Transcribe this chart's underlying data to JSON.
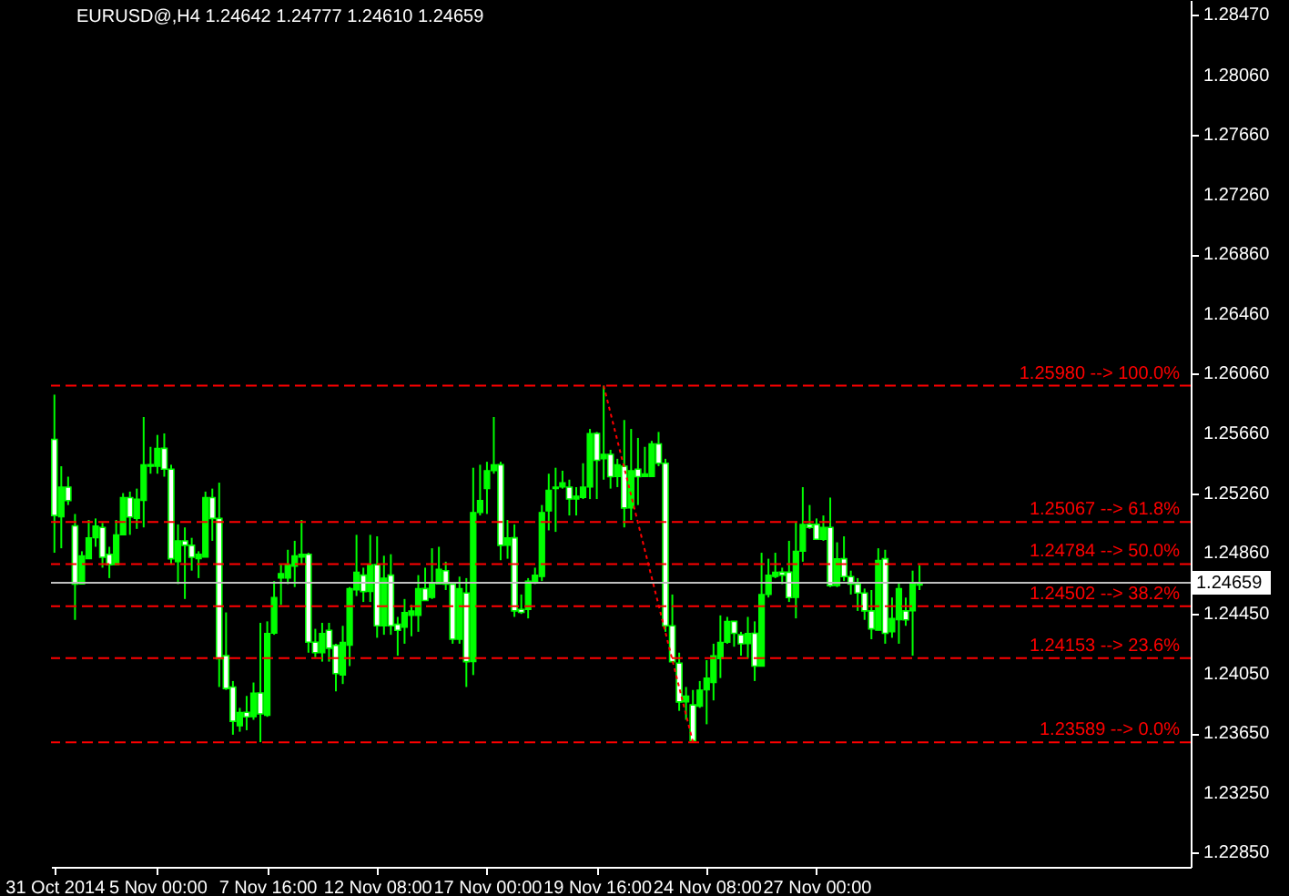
{
  "chart_data": {
    "type": "candlestick",
    "title": "EURUSD@,H4  1.24642 1.24777 1.24610 1.24659",
    "categories": [
      "31 Oct 2014",
      null,
      null,
      null,
      null,
      null,
      null,
      null,
      null,
      null,
      null,
      null,
      null,
      null,
      null,
      "5 Nov 00:00",
      null,
      null,
      null,
      null,
      null,
      null,
      null,
      null,
      null,
      null,
      null,
      null,
      null,
      null,
      null,
      "7 Nov 16:00",
      null,
      null,
      null,
      null,
      null,
      null,
      null,
      null,
      null,
      null,
      null,
      null,
      null,
      null,
      null,
      "12 Nov 08:00",
      null,
      null,
      null,
      null,
      null,
      null,
      null,
      null,
      null,
      null,
      null,
      null,
      null,
      null,
      null,
      "17 Nov 00:00",
      null,
      null,
      null,
      null,
      null,
      null,
      null,
      null,
      null,
      null,
      null,
      null,
      null,
      null,
      null,
      "19 Nov 16:00",
      null,
      null,
      null,
      null,
      null,
      null,
      null,
      null,
      null,
      null,
      null,
      null,
      null,
      null,
      null,
      "24 Nov 08:00",
      null,
      null,
      null,
      null,
      null,
      null,
      null,
      null,
      null,
      null,
      null,
      null,
      null,
      null,
      null,
      "27 Nov 00:00",
      null,
      null,
      null,
      null,
      null,
      null,
      null,
      null,
      null,
      null,
      null,
      null,
      null,
      null,
      null,
      null,
      null,
      null,
      null,
      null,
      null,
      null,
      null,
      null,
      null,
      null,
      null,
      null,
      null,
      null,
      null,
      null,
      null,
      null,
      null,
      null,
      null,
      null,
      null,
      null,
      null,
      null,
      null,
      null,
      null,
      null,
      null,
      null,
      null,
      null,
      null,
      null,
      null,
      null
    ],
    "series": [
      {
        "type": "candlestick",
        "color": "#00ff00",
        "ohlc": [
          [
            1.2562,
            1.2592,
            1.2486,
            1.2511
          ],
          [
            1.251,
            1.2544,
            1.2489,
            1.253
          ],
          [
            1.253,
            1.2537,
            1.2518,
            1.2521
          ],
          [
            1.2504,
            1.2512,
            1.2441,
            1.2465
          ],
          [
            1.2465,
            1.2487,
            1.2465,
            1.2484
          ],
          [
            1.2482,
            1.2508,
            1.2482,
            1.2496
          ],
          [
            1.2496,
            1.2509,
            1.249,
            1.2504
          ],
          [
            1.2503,
            1.2506,
            1.2476,
            1.2483
          ],
          [
            1.2485,
            1.249,
            1.2469,
            1.2478
          ],
          [
            1.2478,
            1.2508,
            1.2478,
            1.2498
          ],
          [
            1.2498,
            1.2526,
            1.2498,
            1.2523
          ],
          [
            1.2523,
            1.2527,
            1.2498,
            1.251
          ],
          [
            1.2509,
            1.2529,
            1.2502,
            1.2522
          ],
          [
            1.2521,
            1.2577,
            1.2503,
            1.2545
          ],
          [
            1.2545,
            1.2557,
            1.2539,
            1.2544
          ],
          [
            1.2544,
            1.2565,
            1.2539,
            1.2556
          ],
          [
            1.2556,
            1.2566,
            1.2537,
            1.2542
          ],
          [
            1.2542,
            1.2545,
            1.2478,
            1.2482
          ],
          [
            1.248,
            1.2505,
            1.2465,
            1.2494
          ],
          [
            1.2494,
            1.2503,
            1.2455,
            1.2491
          ],
          [
            1.2491,
            1.2496,
            1.2474,
            1.2483
          ],
          [
            1.2482,
            1.2487,
            1.2469,
            1.2485
          ],
          [
            1.2483,
            1.2527,
            1.2483,
            1.2523
          ],
          [
            1.2523,
            1.2529,
            1.2494,
            1.2509
          ],
          [
            1.2509,
            1.2533,
            1.2396,
            1.2415
          ],
          [
            1.2417,
            1.2446,
            1.2394,
            1.2395
          ],
          [
            1.2396,
            1.24,
            1.2364,
            1.2373
          ],
          [
            1.237,
            1.2382,
            1.2366,
            1.2379
          ],
          [
            1.2379,
            1.239,
            1.2367,
            1.2376
          ],
          [
            1.2376,
            1.2399,
            1.2374,
            1.2392
          ],
          [
            1.2392,
            1.2439,
            1.2359,
            1.2378
          ],
          [
            1.2377,
            1.244,
            1.2376,
            1.2432
          ],
          [
            1.2432,
            1.2467,
            1.2431,
            1.2456
          ],
          [
            1.2469,
            1.2478,
            1.2451,
            1.2472
          ],
          [
            1.2469,
            1.2488,
            1.2465,
            1.2478
          ],
          [
            1.2477,
            1.2494,
            1.2463,
            1.2484
          ],
          [
            1.2483,
            1.2508,
            1.2478,
            1.2485
          ],
          [
            1.2485,
            1.2486,
            1.2419,
            1.2426
          ],
          [
            1.2426,
            1.2435,
            1.2416,
            1.2419
          ],
          [
            1.2419,
            1.2439,
            1.2413,
            1.2432
          ],
          [
            1.2434,
            1.2439,
            1.2413,
            1.2422
          ],
          [
            1.2424,
            1.2425,
            1.2393,
            1.2405
          ],
          [
            1.2404,
            1.2437,
            1.2398,
            1.2426
          ],
          [
            1.2424,
            1.2463,
            1.241,
            1.2462
          ],
          [
            1.2461,
            1.2498,
            1.2457,
            1.2473
          ],
          [
            1.2471,
            1.2476,
            1.2453,
            1.246
          ],
          [
            1.246,
            1.2498,
            1.2453,
            1.2478
          ],
          [
            1.2478,
            1.2497,
            1.2429,
            1.2437
          ],
          [
            1.2437,
            1.2484,
            1.2431,
            1.2469
          ],
          [
            1.2471,
            1.2485,
            1.2431,
            1.2437
          ],
          [
            1.2438,
            1.2443,
            1.2417,
            1.2434
          ],
          [
            1.2436,
            1.2455,
            1.2425,
            1.2446
          ],
          [
            1.2444,
            1.2451,
            1.243,
            1.2447
          ],
          [
            1.2444,
            1.2471,
            1.2433,
            1.2462
          ],
          [
            1.2462,
            1.2476,
            1.2454,
            1.2454
          ],
          [
            1.2456,
            1.2489,
            1.2455,
            1.2465
          ],
          [
            1.2465,
            1.249,
            1.2465,
            1.2475
          ],
          [
            1.2474,
            1.248,
            1.2461,
            1.2465
          ],
          [
            1.2465,
            1.2465,
            1.2425,
            1.2428
          ],
          [
            1.2428,
            1.247,
            1.2425,
            1.2462
          ],
          [
            1.2459,
            1.2469,
            1.2396,
            1.2413
          ],
          [
            1.2413,
            1.2543,
            1.2404,
            1.2513
          ],
          [
            1.2513,
            1.2545,
            1.2511,
            1.2521
          ],
          [
            1.2529,
            1.2547,
            1.2512,
            1.2541
          ],
          [
            1.2541,
            1.2577,
            1.2539,
            1.2545
          ],
          [
            1.2545,
            1.2547,
            1.2481,
            1.2491
          ],
          [
            1.2491,
            1.2508,
            1.2482,
            1.2496
          ],
          [
            1.2496,
            1.2505,
            1.2443,
            1.2447
          ],
          [
            1.2448,
            1.2458,
            1.2445,
            1.2446
          ],
          [
            1.2448,
            1.2469,
            1.2442,
            1.2467
          ],
          [
            1.2466,
            1.2476,
            1.2465,
            1.2471
          ],
          [
            1.247,
            1.2518,
            1.2467,
            1.2513
          ],
          [
            1.2514,
            1.2539,
            1.2501,
            1.2528
          ],
          [
            1.2529,
            1.2543,
            1.25,
            1.253
          ],
          [
            1.253,
            1.2541,
            1.2529,
            1.2533
          ],
          [
            1.253,
            1.2535,
            1.2511,
            1.2522
          ],
          [
            1.2522,
            1.253,
            1.2511,
            1.2524
          ],
          [
            1.2523,
            1.2546,
            1.2522,
            1.253
          ],
          [
            1.253,
            1.2569,
            1.2522,
            1.2566
          ],
          [
            1.2566,
            1.2567,
            1.2522,
            1.2548
          ],
          [
            1.2549,
            1.2598,
            1.2535,
            1.2552
          ],
          [
            1.2552,
            1.2555,
            1.2529,
            1.2537
          ],
          [
            1.2537,
            1.2549,
            1.253,
            1.2545
          ],
          [
            1.2544,
            1.2575,
            1.2503,
            1.2516
          ],
          [
            1.2516,
            1.2569,
            1.2508,
            1.2541
          ],
          [
            1.2542,
            1.2563,
            1.2518,
            1.2537
          ],
          [
            1.2537,
            1.2557,
            1.2537,
            1.2539
          ],
          [
            1.2537,
            1.2561,
            1.2537,
            1.2559
          ],
          [
            1.2559,
            1.2567,
            1.2544,
            1.2546
          ],
          [
            1.2546,
            1.2549,
            1.2433,
            1.2437
          ],
          [
            1.2437,
            1.2458,
            1.2413,
            1.2413
          ],
          [
            1.2412,
            1.2419,
            1.238,
            1.2386
          ],
          [
            1.2386,
            1.2396,
            1.2374,
            1.239
          ],
          [
            1.2384,
            1.2394,
            1.23589,
            1.236
          ],
          [
            1.2383,
            1.24,
            1.2382,
            1.2394
          ],
          [
            1.2394,
            1.2414,
            1.2371,
            1.2402
          ],
          [
            1.2399,
            1.2425,
            1.2387,
            1.2417
          ],
          [
            1.2415,
            1.2444,
            1.2402,
            1.2426
          ],
          [
            1.2426,
            1.2443,
            1.2425,
            1.244
          ],
          [
            1.244,
            1.244,
            1.2423,
            1.2432
          ],
          [
            1.2431,
            1.2433,
            1.2417,
            1.2425
          ],
          [
            1.2425,
            1.2443,
            1.2415,
            1.2432
          ],
          [
            1.2432,
            1.244,
            1.24,
            1.241
          ],
          [
            1.241,
            1.2486,
            1.241,
            1.2458
          ],
          [
            1.2458,
            1.2482,
            1.2456,
            1.2471
          ],
          [
            1.247,
            1.2486,
            1.2469,
            1.2473
          ],
          [
            1.2473,
            1.2476,
            1.2465,
            1.2471
          ],
          [
            1.2473,
            1.2494,
            1.2453,
            1.2456
          ],
          [
            1.2456,
            1.2507,
            1.2442,
            1.2487
          ],
          [
            1.2487,
            1.253,
            1.248,
            1.2505
          ],
          [
            1.2505,
            1.2518,
            1.2502,
            1.2503
          ],
          [
            1.2505,
            1.2509,
            1.2495,
            1.2495
          ],
          [
            1.2495,
            1.2511,
            1.2494,
            1.2503
          ],
          [
            1.2503,
            1.2523,
            1.2463,
            1.2464
          ],
          [
            1.2464,
            1.2493,
            1.2463,
            1.2482
          ],
          [
            1.2482,
            1.2497,
            1.2467,
            1.247
          ],
          [
            1.247,
            1.2474,
            1.2458,
            1.2465
          ],
          [
            1.2465,
            1.2469,
            1.2447,
            1.2459
          ],
          [
            1.2459,
            1.2462,
            1.2441,
            1.2447
          ],
          [
            1.2447,
            1.2461,
            1.2428,
            1.2435
          ],
          [
            1.2434,
            1.2489,
            1.2434,
            1.2481
          ],
          [
            1.2482,
            1.2488,
            1.2425,
            1.2432
          ],
          [
            1.2433,
            1.2456,
            1.2429,
            1.2442
          ],
          [
            1.2441,
            1.2466,
            1.2425,
            1.2462
          ],
          [
            1.2447,
            1.2456,
            1.2437,
            1.2441
          ],
          [
            1.2447,
            1.2474,
            1.2417,
            1.2465
          ],
          [
            1.24642,
            1.24777,
            1.2461,
            1.24659
          ],
          null,
          null,
          null,
          null,
          null,
          null,
          null,
          null,
          null,
          null,
          null,
          null,
          null,
          null,
          null,
          null,
          null,
          null,
          null,
          null,
          null,
          null,
          null,
          null,
          null,
          null,
          null,
          null,
          null,
          null,
          null,
          null,
          null,
          null,
          null,
          null,
          null,
          null,
          null
        ]
      },
      {
        "type": "line",
        "color": "#ff0000",
        "line_style": "dotted",
        "values": [
          null,
          null,
          null,
          null,
          null,
          null,
          null,
          null,
          null,
          null,
          null,
          null,
          null,
          null,
          null,
          null,
          null,
          null,
          null,
          null,
          null,
          null,
          null,
          null,
          null,
          null,
          null,
          null,
          null,
          null,
          null,
          null,
          null,
          null,
          null,
          null,
          null,
          null,
          null,
          null,
          null,
          null,
          null,
          null,
          null,
          null,
          null,
          null,
          null,
          null,
          null,
          null,
          null,
          null,
          null,
          null,
          null,
          null,
          null,
          null,
          null,
          null,
          null,
          null,
          null,
          null,
          null,
          null,
          null,
          null,
          null,
          null,
          null,
          null,
          null,
          null,
          null,
          null,
          null,
          null,
          1.2598,
          null,
          null,
          null,
          null,
          null,
          null,
          null,
          null,
          null,
          null,
          null,
          null,
          1.2359,
          null,
          null,
          null,
          null,
          null,
          null,
          null,
          null,
          null,
          null,
          null,
          null,
          null,
          null,
          null,
          null,
          null,
          null,
          null,
          null,
          null,
          null,
          null,
          null,
          null,
          null,
          null,
          null,
          null,
          null,
          null,
          null,
          null,
          null,
          null,
          null,
          null,
          null,
          null,
          null,
          null,
          null,
          null,
          null,
          null,
          null,
          null,
          null,
          null,
          null,
          null,
          null,
          null,
          null,
          null,
          null,
          null,
          null,
          null,
          null,
          null,
          null,
          null,
          null,
          null,
          null,
          null,
          null,
          null,
          null,
          null,
          null
        ]
      }
    ],
    "ylim": [
      1.22754,
      1.28566
    ],
    "yticks": [
      {
        "value": 1.2847,
        "label": "1.28470"
      },
      {
        "value": 1.2806,
        "label": "1.28060"
      },
      {
        "value": 1.2766,
        "label": "1.27660"
      },
      {
        "value": 1.2726,
        "label": "1.27260"
      },
      {
        "value": 1.2686,
        "label": "1.26860"
      },
      {
        "value": 1.2646,
        "label": "1.26460"
      },
      {
        "value": 1.2606,
        "label": "1.26060"
      },
      {
        "value": 1.2566,
        "label": "1.25660"
      },
      {
        "value": 1.2526,
        "label": "1.25260"
      },
      {
        "value": 1.2486,
        "label": "1.24860"
      },
      {
        "value": 1.2445,
        "label": "1.24450"
      },
      {
        "value": 1.2405,
        "label": "1.24050"
      },
      {
        "value": 1.2365,
        "label": "1.23650"
      },
      {
        "value": 1.2325,
        "label": "1.23250"
      },
      {
        "value": 1.2285,
        "label": "1.22850"
      }
    ],
    "ref_lines": [
      {
        "axis": "y",
        "value": 1.2598,
        "label": "1.25980 --> 100.0%",
        "color": "#ff0000",
        "line_style": "dashed"
      },
      {
        "axis": "y",
        "value": 1.25067,
        "label": "1.25067 --> 61.8%",
        "color": "#ff0000",
        "line_style": "dashed"
      },
      {
        "axis": "y",
        "value": 1.24784,
        "label": "1.24784 --> 50.0%",
        "color": "#ff0000",
        "line_style": "dashed"
      },
      {
        "axis": "y",
        "value": 1.24502,
        "label": "1.24502 --> 38.2%",
        "color": "#ff0000",
        "line_style": "dashed"
      },
      {
        "axis": "y",
        "value": 1.24153,
        "label": "1.24153 --> 23.6%",
        "color": "#ff0000",
        "line_style": "dashed"
      },
      {
        "axis": "y",
        "value": 1.23589,
        "label": "1.23589 --> 0.0%",
        "color": "#ff0000",
        "line_style": "dashed"
      },
      {
        "axis": "y",
        "value": 1.24659,
        "label": "1.24659",
        "color": "#c0c0c0",
        "line_style": "solid"
      }
    ]
  }
}
